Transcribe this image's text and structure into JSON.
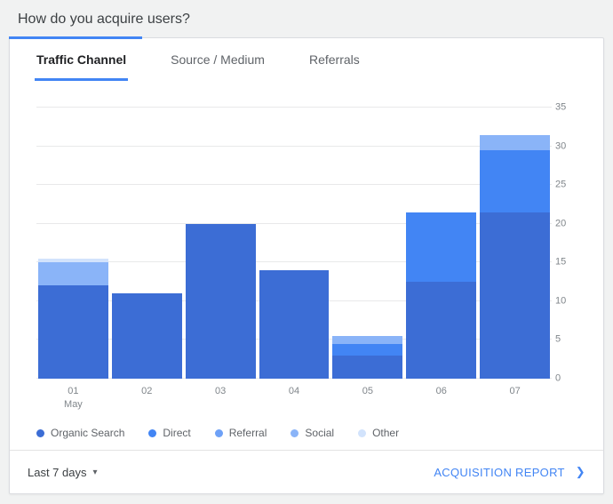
{
  "header": {
    "title": "How do you acquire users?"
  },
  "tabs": [
    {
      "label": "Traffic Channel",
      "active": true
    },
    {
      "label": "Source / Medium",
      "active": false
    },
    {
      "label": "Referrals",
      "active": false
    }
  ],
  "chart_data": {
    "type": "bar",
    "stacked": true,
    "categories": [
      "01",
      "02",
      "03",
      "04",
      "05",
      "06",
      "07"
    ],
    "x_sub_label": "May",
    "ylim": [
      0,
      35
    ],
    "yticks": [
      0,
      5,
      10,
      15,
      20,
      25,
      30,
      35
    ],
    "grid": true,
    "legend_position": "bottom",
    "series": [
      {
        "name": "Organic Search",
        "color": "#3c6dd5",
        "values": [
          12,
          11,
          20,
          14,
          3,
          12.5,
          21.5
        ]
      },
      {
        "name": "Direct",
        "color": "#4285f4",
        "values": [
          0,
          0,
          0,
          0,
          1.5,
          9,
          8
        ]
      },
      {
        "name": "Referral",
        "color": "#6ea1f7",
        "values": [
          0,
          0,
          0,
          0,
          0,
          0,
          0
        ]
      },
      {
        "name": "Social",
        "color": "#8ab4f8",
        "values": [
          3,
          0,
          0,
          0,
          1,
          0,
          2
        ]
      },
      {
        "name": "Other",
        "color": "#d2e3fc",
        "values": [
          0.5,
          0,
          0,
          0,
          0,
          0,
          0
        ]
      }
    ]
  },
  "footer": {
    "range_label": "Last 7 days",
    "report_label": "ACQUISITION REPORT"
  },
  "icons": {
    "dropdown_caret": "▾",
    "chevron_right": "❯"
  },
  "colors": {
    "accent": "#4285f4"
  }
}
